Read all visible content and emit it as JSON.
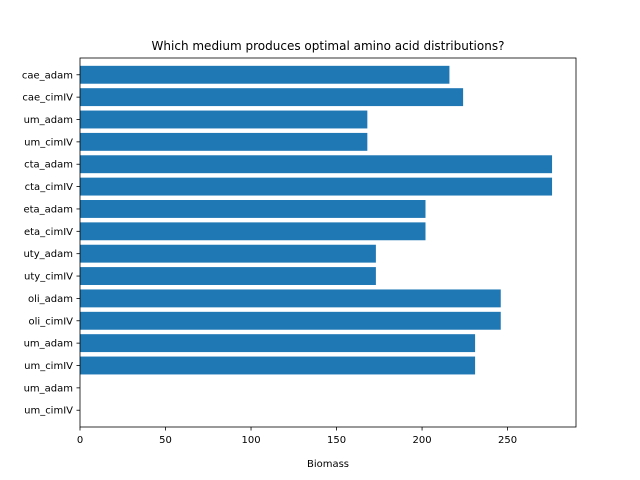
{
  "chart_data": {
    "type": "bar",
    "orientation": "horizontal",
    "title": "Which medium produces optimal amino acid distributions?",
    "xlabel": "Biomass",
    "ylabel": "",
    "categories": [
      "caecae_adam",
      "caecae_cimIV",
      "xxum_adam",
      "xxum_cimIV",
      "xxucta_adam",
      "xxucta_cimIV",
      "xxeta_adam",
      "xxeta_cimIV",
      "xxbuty_adam",
      "xxbuty_cimIV",
      "xxcoli_adam",
      "xxcoli_cimIV",
      "xxum_adam",
      "xxsum_cimIV",
      "xxrum_adam",
      "xxrum_cimIV"
    ],
    "visible_tick_labels": [
      "cae_adam",
      "cae_cimIV",
      "um_adam",
      "um_cimIV",
      "cta_adam",
      "cta_cimIV",
      "eta_adam",
      "eta_cimIV",
      "uty_adam",
      "uty_cimIV",
      "oli_adam",
      "oli_cimIV",
      "um_adam",
      "um_cimIV",
      "um_adam",
      "um_cimIV"
    ],
    "values": [
      216,
      224,
      168,
      168,
      276,
      276,
      202,
      202,
      173,
      173,
      246,
      246,
      231,
      231,
      0,
      0
    ],
    "xlim": [
      0,
      290
    ],
    "xticks": [
      0,
      50,
      100,
      150,
      200,
      250
    ],
    "bar_color": "#1f77b4",
    "grid": false,
    "legend": "none"
  }
}
